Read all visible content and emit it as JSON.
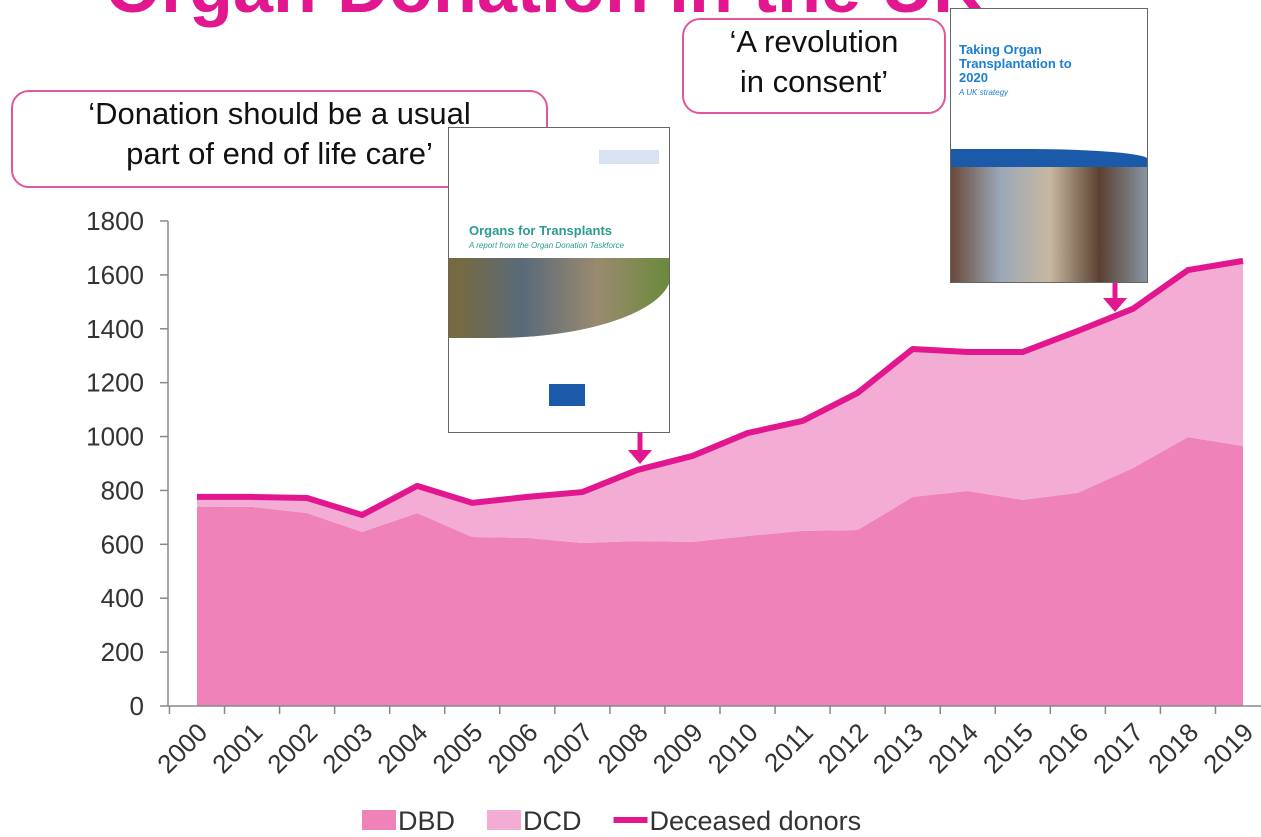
{
  "chart_data": {
    "type": "stacked-area-line",
    "title": "Organ Donation in the UK",
    "categories": [
      "2000",
      "2001",
      "2002",
      "2003",
      "2004",
      "2005",
      "2006",
      "2007",
      "2008",
      "2009",
      "2010",
      "2011",
      "2012",
      "2013",
      "2014",
      "2015",
      "2016",
      "2017",
      "2018",
      "2019"
    ],
    "series": [
      {
        "name": "DBD",
        "color": "#ee82b9",
        "kind": "area",
        "values": [
          740,
          739,
          716,
          646,
          716,
          627,
          624,
          605,
          612,
          609,
          631,
          650,
          653,
          776,
          798,
          765,
          791,
          883,
          998,
          965
        ]
      },
      {
        "name": "DCD",
        "color": "#f3acd3",
        "kind": "area",
        "values": [
          36,
          37,
          56,
          63,
          101,
          127,
          152,
          189,
          264,
          319,
          382,
          408,
          509,
          549,
          516,
          549,
          601,
          591,
          620,
          687
        ]
      },
      {
        "name": "Deceased donors",
        "color": "#e2178f",
        "kind": "line",
        "values": [
          776,
          776,
          772,
          709,
          817,
          754,
          776,
          794,
          876,
          928,
          1013,
          1058,
          1162,
          1325,
          1314,
          1314,
          1392,
          1474,
          1618,
          1652
        ]
      }
    ],
    "ylim": [
      0,
      1800
    ],
    "yticks": [
      0,
      200,
      400,
      600,
      800,
      1000,
      1200,
      1400,
      1600,
      1800
    ],
    "annotations": [
      {
        "lines": [
          "‘Donation should be a usual",
          "part of end of life care’"
        ]
      },
      {
        "lines": [
          "‘A revolution",
          "in consent’"
        ]
      }
    ],
    "documents": [
      {
        "title": "Organs for Transplants",
        "subtitle": "A report from the Organ Donation Taskforce"
      },
      {
        "title": "Taking Organ Transplantation to 2020",
        "subtitle": "A UK strategy"
      }
    ]
  }
}
